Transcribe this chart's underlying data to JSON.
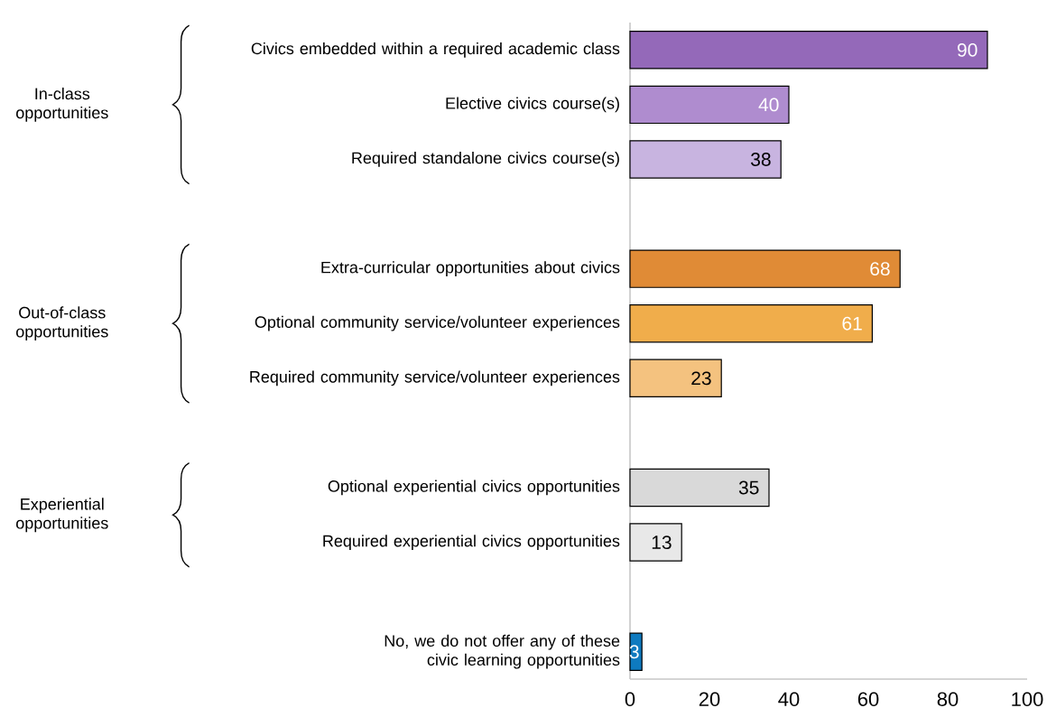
{
  "chart_data": {
    "type": "bar",
    "orientation": "horizontal",
    "categories": [
      "Civics embedded within a required academic class",
      "Elective civics course(s)",
      "Required standalone civics course(s)",
      null,
      "Extra-curricular opportunities about civics",
      "Optional community service/volunteer experiences",
      "Required community service/volunteer experiences",
      null,
      "Optional experiential civics opportunities",
      "Required experiential civics opportunities",
      null,
      "No, we do not offer any of these civic learning opportunities"
    ],
    "values": [
      90,
      40,
      38,
      null,
      68,
      61,
      23,
      null,
      35,
      13,
      null,
      3
    ],
    "colors": [
      "#9469b9",
      "#af8ccf",
      "#c8b4e0",
      null,
      "#e08b36",
      "#f0ad4b",
      "#f4c27f",
      null,
      "#d9d9d9",
      "#e8e8e8",
      null,
      "#0e7abf"
    ],
    "xlim": [
      0,
      100
    ],
    "xticks": [
      0,
      20,
      40,
      60,
      80,
      100
    ],
    "data_labels": true,
    "annotations": [
      "In-class opportunities",
      "Out-of-class opportunities",
      "Experiential opportunities"
    ]
  }
}
